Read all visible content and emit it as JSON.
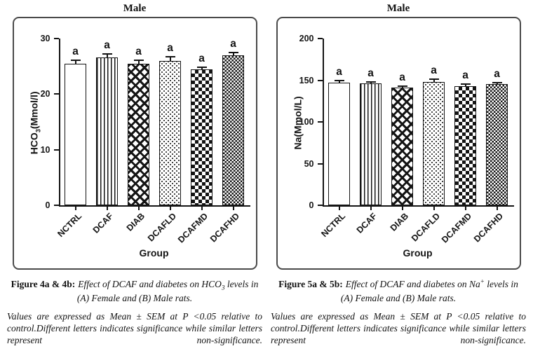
{
  "page": {
    "background": "#ffffff"
  },
  "colors": {
    "ink": "#141414",
    "panel_border": "#4a4a4a",
    "background": "#ffffff",
    "text": "#1a1a1a"
  },
  "figures": [
    {
      "title": "Male",
      "caption": {
        "prefix": "Figure 4a & 4b:",
        "body": "Effect of DCAF and diabetes on HCO",
        "sub": "3",
        "sup": "",
        "tail": " levels in",
        "line2": "(A) Female and (B) Male rats."
      },
      "note": "Values are expressed as Mean ± SEM at P <0.05 relative to control.Different letters indicates significance while similar letters represent non-significance."
    },
    {
      "title": "Male",
      "caption": {
        "prefix": "Figure 5a & 5b:",
        "body": "Effect of DCAF and diabetes on Na",
        "sub": "",
        "sup": "+",
        "tail": " levels in",
        "line2": "(A) Female and (B) Male rats."
      },
      "note": "Values are expressed as Mean ± SEM at P <0.05 relative to control.Different letters indicates significance while similar letters represent non-significance."
    }
  ],
  "chart_data": [
    {
      "type": "bar",
      "title": "Male",
      "categories": [
        "NCTRL",
        "DCAF",
        "DIAB",
        "DCAFLD",
        "DCAFMD",
        "DCAFHD"
      ],
      "values": [
        25.5,
        26.6,
        25.5,
        26.0,
        24.5,
        27.0
      ],
      "errors": [
        0.6,
        0.6,
        0.6,
        0.7,
        0.3,
        0.5
      ],
      "sig_letters": [
        "a",
        "a",
        "a",
        "a",
        "a",
        "a"
      ],
      "bar_patterns": [
        "solid-white",
        "vertical-stripes",
        "diamond-lattice",
        "speckled-dots",
        "checkerboard",
        "fine-checkerboard"
      ],
      "xlabel": "Group",
      "ylabel": {
        "pre": "HCO",
        "sub": "3",
        "post": "(Mmol/l)"
      },
      "ylim": [
        0,
        30
      ],
      "yticks": [
        0,
        10,
        20,
        30
      ],
      "grid": false,
      "legend": "none",
      "error_style": "SEM, upper cap only"
    },
    {
      "type": "bar",
      "title": "Male",
      "categories": [
        "NCTRL",
        "DCAF",
        "DIAB",
        "DCAFLD",
        "DCAFMD",
        "DCAFHD"
      ],
      "values": [
        147,
        146,
        141,
        148,
        143,
        145
      ],
      "errors": [
        2.5,
        2,
        1.5,
        3,
        2.5,
        2
      ],
      "sig_letters": [
        "a",
        "a",
        "a",
        "a",
        "a",
        "a"
      ],
      "bar_patterns": [
        "solid-white",
        "vertical-stripes",
        "diamond-lattice",
        "speckled-dots",
        "checkerboard",
        "fine-checkerboard"
      ],
      "xlabel": "Group",
      "ylabel": {
        "pre": "Na",
        "sub": "",
        "post": "(Mmol/L)"
      },
      "ylim": [
        0,
        200
      ],
      "yticks": [
        0,
        50,
        100,
        150,
        200
      ],
      "grid": false,
      "legend": "none",
      "error_style": "SEM, upper cap only"
    }
  ]
}
